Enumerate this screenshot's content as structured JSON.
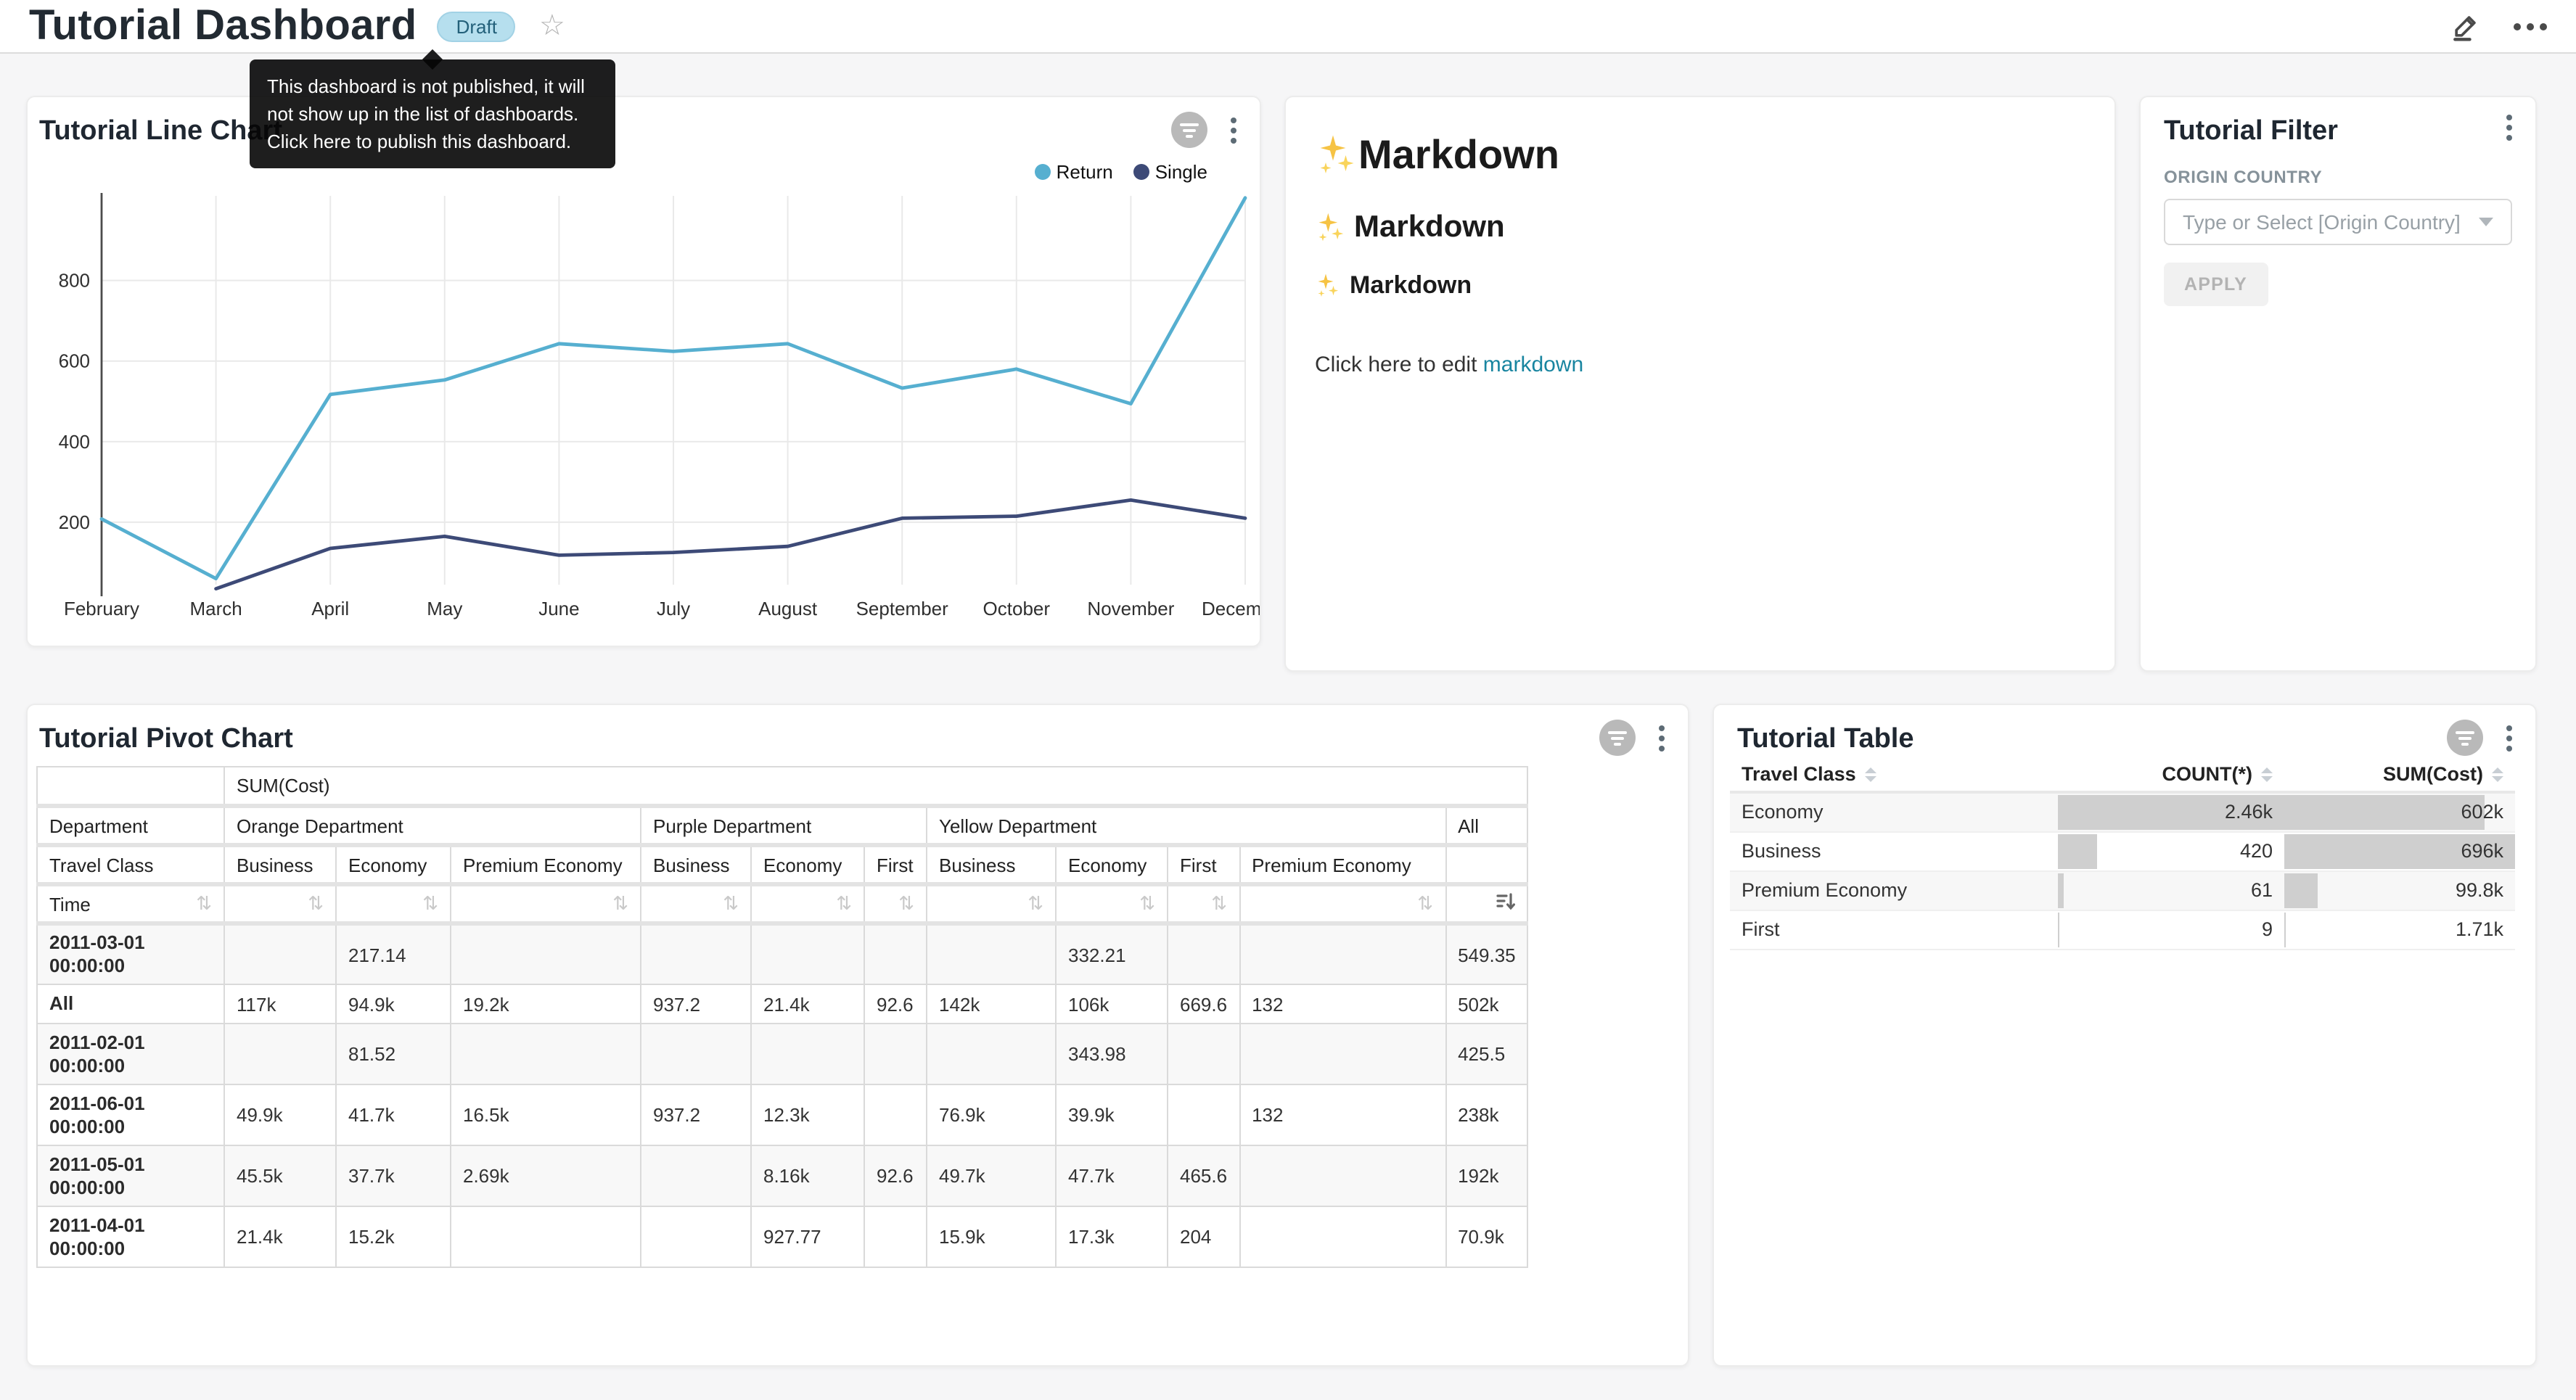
{
  "header": {
    "title": "Tutorial Dashboard",
    "badge": "Draft",
    "icons": {
      "star": "star-outline-icon",
      "edit": "pencil-icon",
      "more": "ellipsis-icon"
    }
  },
  "tooltip": {
    "text": "This dashboard is not published, it will not show up in the list of dashboards. Click here to publish this dashboard."
  },
  "line_chart_card": {
    "title": "Tutorial Line Chart"
  },
  "chart_data": {
    "type": "line",
    "title": "Tutorial Line Chart",
    "x": [
      "February",
      "March",
      "April",
      "May",
      "June",
      "July",
      "August",
      "September",
      "October",
      "November",
      "December"
    ],
    "series": [
      {
        "name": "Return",
        "color": "#56AFD0",
        "values": [
          208,
          60,
          517,
          553,
          643,
          624,
          643,
          533,
          580,
          494,
          1005
        ]
      },
      {
        "name": "Single",
        "color": "#3D4A77",
        "values": [
          null,
          35,
          135,
          165,
          118,
          125,
          140,
          210,
          215,
          255,
          210
        ]
      }
    ],
    "yticks": [
      200,
      400,
      600,
      800
    ],
    "ymin": 45,
    "ymax": 1010,
    "grid": true,
    "legend_position": "top-right"
  },
  "markdown_card": {
    "sparkle_emoji": "✨",
    "heading1": "Markdown",
    "heading2": "Markdown",
    "heading3": "Markdown",
    "paragraph_prefix": "Click here to edit ",
    "link_text": "markdown",
    "link_color": "#1985a0"
  },
  "filter_card": {
    "title": "Tutorial Filter",
    "field_label": "ORIGIN COUNTRY",
    "select_placeholder": "Type or Select [Origin Country]",
    "apply_label": "APPLY"
  },
  "pivot_card": {
    "title": "Tutorial Pivot Chart",
    "metric_label": "SUM(Cost)",
    "corner": {
      "row2": "Department",
      "row3": "Travel Class",
      "row4": "Time"
    },
    "groups": [
      {
        "name": "Orange Department",
        "cols": [
          "Business",
          "Economy",
          "Premium Economy"
        ]
      },
      {
        "name": "Purple Department",
        "cols": [
          "Business",
          "Economy",
          "First"
        ]
      },
      {
        "name": "Yellow Department",
        "cols": [
          "Business",
          "Economy",
          "First",
          "Premium Economy"
        ]
      },
      {
        "name": "All",
        "cols": [
          ""
        ]
      }
    ],
    "sort_icons": {
      "inactive": "sort-both-icon",
      "active_last_column": "sort-descending-icon"
    },
    "rows": [
      {
        "label": "2011-03-01 00:00:00",
        "values": [
          "",
          "217.14",
          "",
          "",
          "",
          "",
          "",
          "332.21",
          "",
          "",
          "549.35"
        ]
      },
      {
        "label": "All",
        "values": [
          "117k",
          "94.9k",
          "19.2k",
          "937.2",
          "21.4k",
          "92.6",
          "142k",
          "106k",
          "669.6",
          "132",
          "502k"
        ]
      },
      {
        "label": "2011-02-01 00:00:00",
        "values": [
          "",
          "81.52",
          "",
          "",
          "",
          "",
          "",
          "343.98",
          "",
          "",
          "425.5"
        ]
      },
      {
        "label": "2011-06-01 00:00:00",
        "values": [
          "49.9k",
          "41.7k",
          "16.5k",
          "937.2",
          "12.3k",
          "",
          "76.9k",
          "39.9k",
          "",
          "132",
          "238k"
        ]
      },
      {
        "label": "2011-05-01 00:00:00",
        "values": [
          "45.5k",
          "37.7k",
          "2.69k",
          "",
          "8.16k",
          "92.6",
          "49.7k",
          "47.7k",
          "465.6",
          "",
          "192k"
        ]
      },
      {
        "label": "2011-04-01 00:00:00",
        "values": [
          "21.4k",
          "15.2k",
          "",
          "",
          "927.77",
          "",
          "15.9k",
          "17.3k",
          "204",
          "",
          "70.9k"
        ]
      }
    ]
  },
  "table_card": {
    "title": "Tutorial Table",
    "columns": [
      "Travel Class",
      "COUNT(*)",
      "SUM(Cost)"
    ],
    "bar_color": "#cfcfcf",
    "rows": [
      {
        "travel_class": "Economy",
        "count": "2.46k",
        "count_bar_pct": 100,
        "sum": "602k",
        "sum_bar_pct": 86.5
      },
      {
        "travel_class": "Business",
        "count": "420",
        "count_bar_pct": 17,
        "sum": "696k",
        "sum_bar_pct": 100
      },
      {
        "travel_class": "Premium Economy",
        "count": "61",
        "count_bar_pct": 2.5,
        "sum": "99.8k",
        "sum_bar_pct": 14.3
      },
      {
        "travel_class": "First",
        "count": "9",
        "count_bar_pct": 0.5,
        "sum": "1.71k",
        "sum_bar_pct": 0.3
      }
    ]
  }
}
